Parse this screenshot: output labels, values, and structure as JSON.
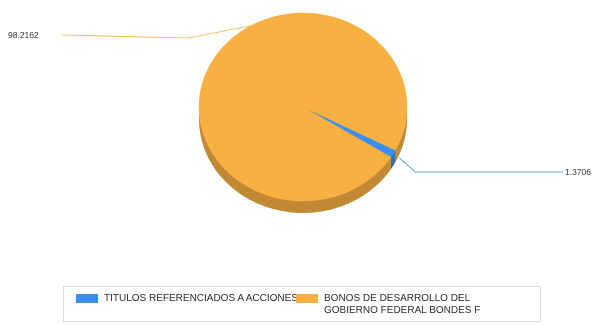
{
  "chart_data": {
    "type": "pie",
    "title": "",
    "categories": [
      "TITULOS REFERENCIADOS A ACCIONES",
      "BONOS DE DESARROLLO DEL GOBIERNO FEDERAL BONDES F"
    ],
    "values": [
      1.3706,
      98.2162
    ],
    "data_labels": [
      "1.3706",
      "98.2162"
    ],
    "colors": [
      "#3b8ff0",
      "#f7b041"
    ],
    "legend": "bottom",
    "style": "3d-tilted"
  },
  "legend": {
    "items": [
      {
        "label": "TITULOS REFERENCIADOS A ACCIONES",
        "color": "#3b8ff0"
      },
      {
        "label": "BONOS DE DESARROLLO DEL GOBIERNO FEDERAL BONDES F",
        "color": "#f7b041"
      }
    ]
  }
}
